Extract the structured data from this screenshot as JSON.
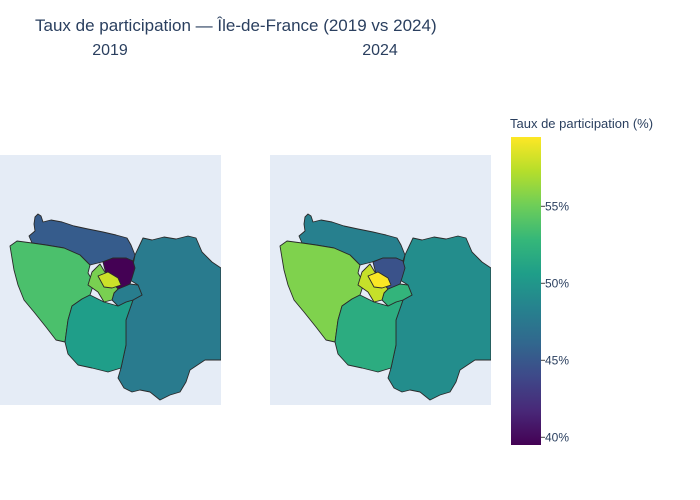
{
  "chart_data": {
    "type": "choropleth",
    "title": "Taux de participation — Île-de-France (2019 vs 2024)",
    "colorbar": {
      "title": "Taux de participation (%)",
      "min": 39.5,
      "max": 59.5,
      "ticks": [
        {
          "value": 40,
          "label": "40%"
        },
        {
          "value": 45,
          "label": "45%"
        },
        {
          "value": 50,
          "label": "50%"
        },
        {
          "value": 55,
          "label": "55%"
        }
      ],
      "colorscale": [
        "#440154",
        "#482878",
        "#3e4989",
        "#31688e",
        "#26828e",
        "#1f9e89",
        "#35b779",
        "#6ece58",
        "#b5de2b",
        "#fde725"
      ]
    },
    "maps": [
      {
        "subtitle": "2019",
        "regions": [
          {
            "id": "val-d-oise",
            "value": 45.3
          },
          {
            "id": "yvelines",
            "value": 53.7
          },
          {
            "id": "seine-et-marne",
            "value": 47.8
          },
          {
            "id": "essonne",
            "value": 50.6
          },
          {
            "id": "hauts-de-seine",
            "value": 55.4
          },
          {
            "id": "seine-saint-denis",
            "value": 39.5
          },
          {
            "id": "val-de-marne",
            "value": 48.0
          },
          {
            "id": "paris",
            "value": 58.0
          }
        ]
      },
      {
        "subtitle": "2024",
        "regions": [
          {
            "id": "val-d-oise",
            "value": 48.2
          },
          {
            "id": "yvelines",
            "value": 55.6
          },
          {
            "id": "seine-et-marne",
            "value": 49.3
          },
          {
            "id": "essonne",
            "value": 51.9
          },
          {
            "id": "hauts-de-seine",
            "value": 57.8
          },
          {
            "id": "seine-saint-denis",
            "value": 44.6
          },
          {
            "id": "val-de-marne",
            "value": 52.6
          },
          {
            "id": "paris",
            "value": 59.4
          }
        ]
      }
    ]
  }
}
